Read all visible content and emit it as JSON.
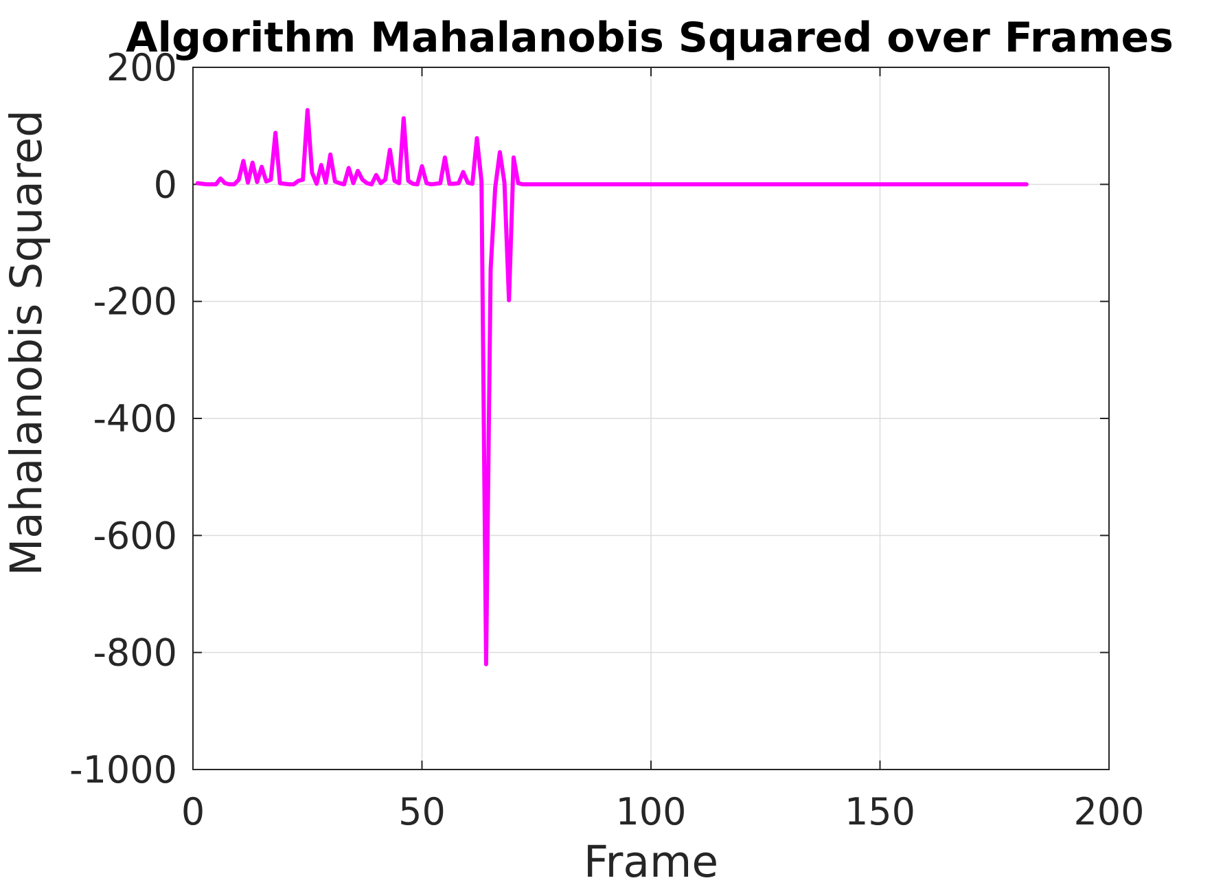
{
  "chart_data": {
    "type": "line",
    "title": "Algorithm Mahalanobis Squared over Frames",
    "xlabel": "Frame",
    "ylabel": "Mahalanobis Squared",
    "xlim": [
      0,
      200
    ],
    "ylim": [
      -1000,
      200
    ],
    "xticks": [
      "0",
      "50",
      "100",
      "150",
      "200"
    ],
    "yticks": [
      "200",
      "0",
      "-200",
      "-400",
      "-600",
      "-800",
      "-1000"
    ],
    "grid": true,
    "line_color": "#ff00ff",
    "series": [
      {
        "x": [
          1,
          2,
          3,
          4,
          5,
          6,
          7,
          8,
          9,
          10,
          11,
          12,
          13,
          14,
          15,
          16,
          17,
          18,
          19,
          20,
          21,
          22,
          23,
          24,
          25,
          26,
          27,
          28,
          29,
          30,
          31,
          32,
          33,
          34,
          35,
          36,
          37,
          38,
          39,
          40,
          41,
          42,
          43,
          44,
          45,
          46,
          47,
          48,
          49,
          50,
          51,
          52,
          53,
          54,
          55,
          56,
          57,
          58,
          59,
          60,
          61,
          62,
          63,
          64,
          65,
          66,
          67,
          68,
          69,
          70,
          71,
          72,
          182
        ],
        "y": [
          2,
          1,
          0,
          0,
          0,
          10,
          2,
          0,
          0,
          8,
          40,
          3,
          37,
          4,
          30,
          5,
          8,
          88,
          2,
          1,
          0,
          0,
          6,
          8,
          127,
          20,
          1,
          33,
          3,
          51,
          5,
          2,
          0,
          28,
          2,
          23,
          8,
          2,
          0,
          16,
          2,
          8,
          59,
          6,
          2,
          113,
          6,
          1,
          0,
          31,
          2,
          0,
          1,
          2,
          46,
          1,
          1,
          2,
          21,
          3,
          1,
          79,
          5,
          -820,
          -145,
          -5,
          55,
          3,
          -198,
          46,
          2,
          0,
          0
        ]
      }
    ]
  }
}
